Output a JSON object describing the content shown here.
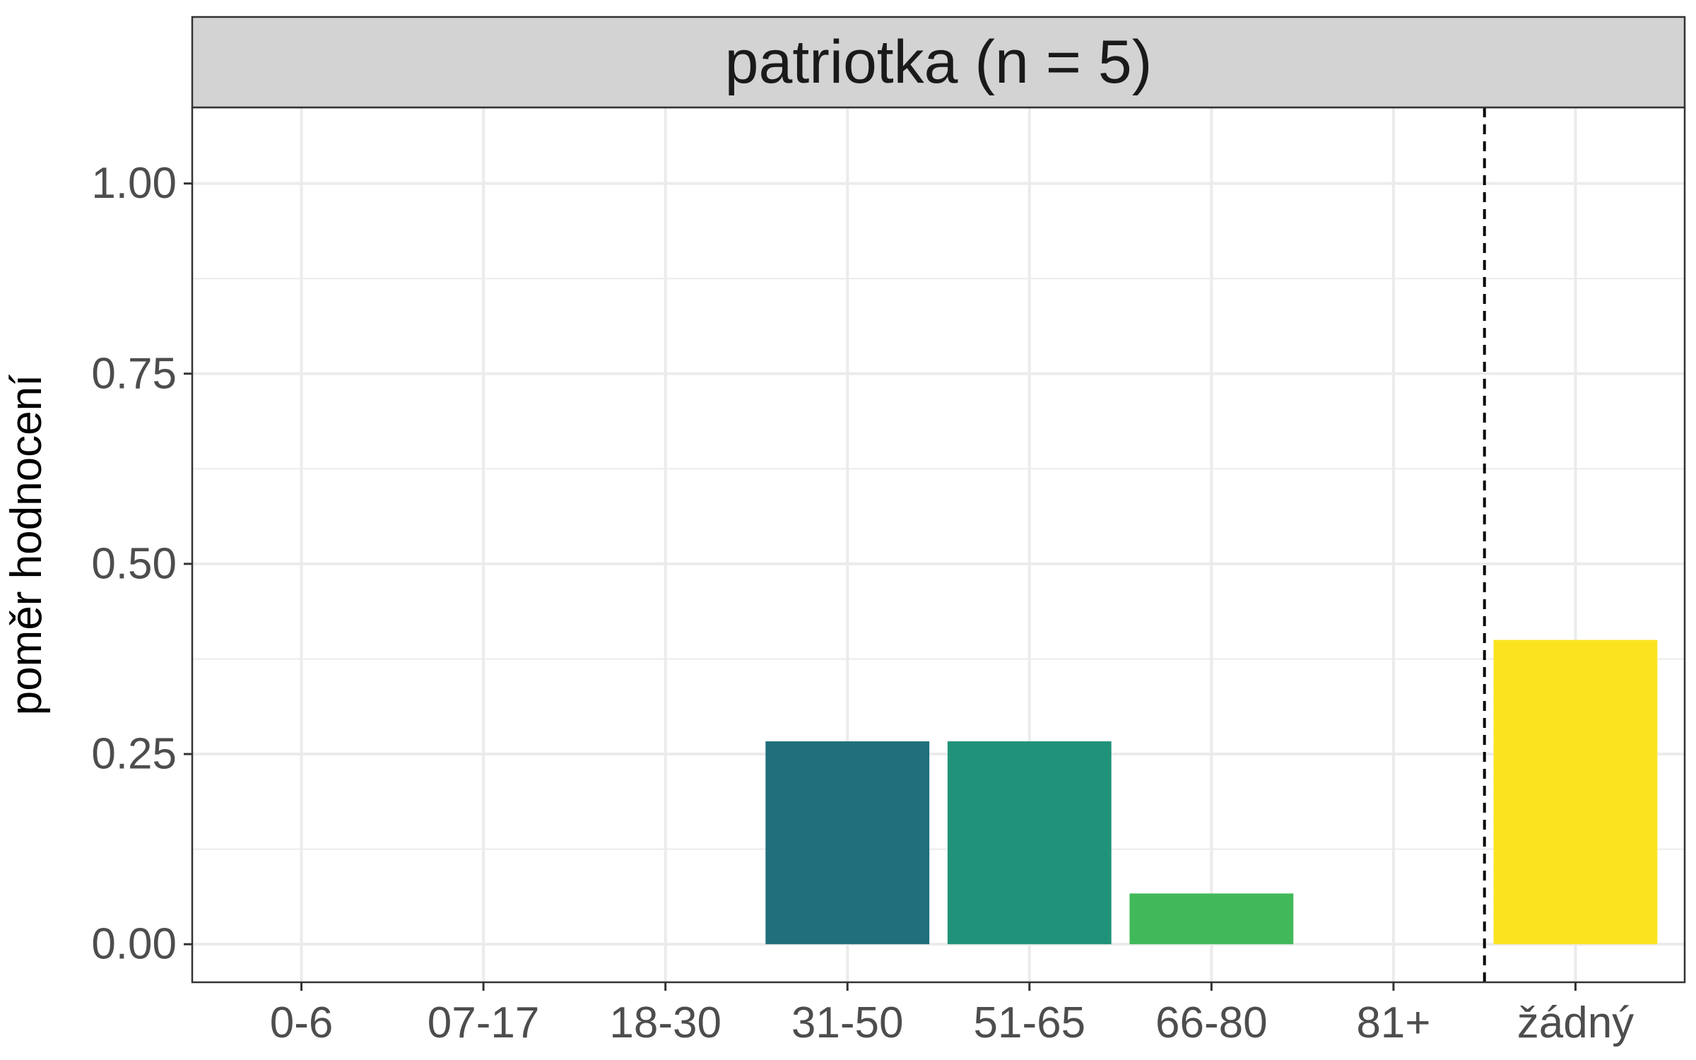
{
  "chart_data": {
    "type": "bar",
    "title": "patriotka (n = 5)",
    "xlabel": "",
    "ylabel": "poměr hodnocení",
    "categories": [
      "0-6",
      "07-17",
      "18-30",
      "31-50",
      "51-65",
      "66-80",
      "81+",
      "žádný"
    ],
    "values": [
      0,
      0,
      0,
      0.2667,
      0.2667,
      0.0667,
      0,
      0.4
    ],
    "colors": [
      "#440154",
      "#46337e",
      "#365c8d",
      "#216f7c",
      "#21927a",
      "#41b95a",
      "#9ad93c",
      "#fbe41f"
    ],
    "ylim": [
      -0.05,
      1.1
    ],
    "yticks": [
      0,
      0.25,
      0.5,
      0.75,
      1
    ],
    "ytick_labels": [
      "0.00",
      "0.25",
      "0.50",
      "0.75",
      "1.00"
    ],
    "reference_line": {
      "style": "dashed",
      "between": [
        "81+",
        "žádný"
      ]
    },
    "grid": true,
    "legend": "none",
    "theme": {
      "strip_fill": "#d3d3d3",
      "grid_color": "#ebebeb",
      "panel_border": "#333333"
    }
  }
}
